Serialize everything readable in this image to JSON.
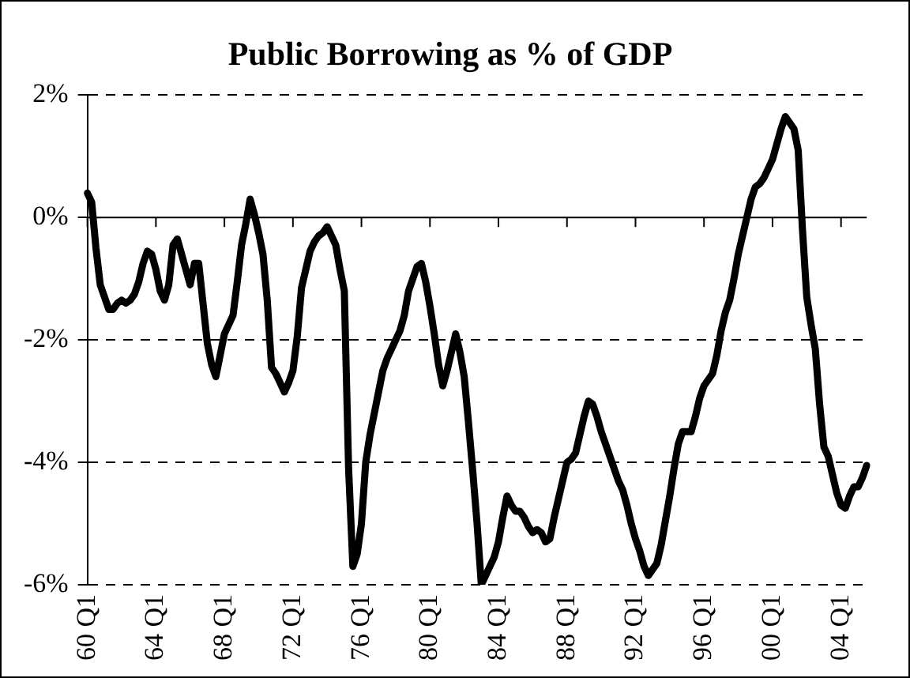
{
  "chart_data": {
    "type": "line",
    "title": "Public Borrowing as % of GDP",
    "categories": [
      "60 Q1",
      null,
      null,
      null,
      null,
      null,
      null,
      null,
      null,
      null,
      null,
      null,
      null,
      null,
      null,
      null,
      "64 Q1",
      null,
      null,
      null,
      null,
      null,
      null,
      null,
      null,
      null,
      null,
      null,
      null,
      null,
      null,
      null,
      "68 Q1",
      null,
      null,
      null,
      null,
      null,
      null,
      null,
      null,
      null,
      null,
      null,
      null,
      null,
      null,
      null,
      "72 Q1",
      null,
      null,
      null,
      null,
      null,
      null,
      null,
      null,
      null,
      null,
      null,
      null,
      null,
      null,
      null,
      "76 Q1",
      null,
      null,
      null,
      null,
      null,
      null,
      null,
      null,
      null,
      null,
      null,
      null,
      null,
      null,
      null,
      "80 Q1",
      null,
      null,
      null,
      null,
      null,
      null,
      null,
      null,
      null,
      null,
      null,
      null,
      null,
      null,
      null,
      "84 Q1",
      null,
      null,
      null,
      null,
      null,
      null,
      null,
      null,
      null,
      null,
      null,
      null,
      null,
      null,
      null,
      "88 Q1",
      null,
      null,
      null,
      null,
      null,
      null,
      null,
      null,
      null,
      null,
      null,
      null,
      null,
      null,
      null,
      "92 Q1",
      null,
      null,
      null,
      null,
      null,
      null,
      null,
      null,
      null,
      null,
      null,
      null,
      null,
      null,
      null,
      "96 Q1",
      null,
      null,
      null,
      null,
      null,
      null,
      null,
      null,
      null,
      null,
      null,
      null,
      null,
      null,
      null,
      "00 Q1",
      null,
      null,
      null,
      null,
      null,
      null,
      null,
      null,
      null,
      null,
      null,
      null,
      null,
      null,
      null,
      "04 Q1",
      null,
      null,
      null,
      null,
      null,
      null
    ],
    "series": [
      {
        "color": "#000000",
        "values": [
          0.4,
          0.25,
          -0.5,
          -1.1,
          -1.3,
          -1.5,
          -1.5,
          -1.4,
          -1.35,
          -1.4,
          -1.35,
          -1.25,
          -1.05,
          -0.75,
          -0.55,
          -0.6,
          -0.85,
          -1.2,
          -1.35,
          -1.1,
          -0.45,
          -0.35,
          -0.6,
          -0.85,
          -1.1,
          -0.75,
          -0.75,
          -1.4,
          -2.05,
          -2.4,
          -2.6,
          -2.25,
          -1.9,
          -1.75,
          -1.6,
          -1.05,
          -0.45,
          -0.1,
          0.3,
          0.05,
          -0.25,
          -0.6,
          -1.35,
          -2.45,
          -2.55,
          -2.7,
          -2.85,
          -2.7,
          -2.5,
          -1.95,
          -1.15,
          -0.85,
          -0.55,
          -0.4,
          -0.3,
          -0.25,
          -0.15,
          -0.3,
          -0.45,
          -0.85,
          -1.2,
          -4.1,
          -5.7,
          -5.5,
          -5.0,
          -4.0,
          -3.55,
          -3.2,
          -2.85,
          -2.5,
          -2.3,
          -2.15,
          -2.0,
          -1.85,
          -1.6,
          -1.2,
          -1.0,
          -0.8,
          -0.75,
          -1.05,
          -1.45,
          -1.9,
          -2.4,
          -2.75,
          -2.5,
          -2.2,
          -1.9,
          -2.2,
          -2.6,
          -3.35,
          -4.15,
          -5.0,
          -6.0,
          -5.85,
          -5.7,
          -5.55,
          -5.3,
          -4.9,
          -4.55,
          -4.7,
          -4.8,
          -4.8,
          -4.9,
          -5.05,
          -5.15,
          -5.1,
          -5.15,
          -5.3,
          -5.25,
          -4.9,
          -4.6,
          -4.3,
          -4.0,
          -3.95,
          -3.85,
          -3.55,
          -3.25,
          -3.0,
          -3.05,
          -3.25,
          -3.5,
          -3.7,
          -3.9,
          -4.1,
          -4.3,
          -4.45,
          -4.7,
          -5.0,
          -5.25,
          -5.45,
          -5.7,
          -5.85,
          -5.75,
          -5.65,
          -5.35,
          -4.95,
          -4.55,
          -4.1,
          -3.7,
          -3.5,
          -3.5,
          -3.5,
          -3.25,
          -2.95,
          -2.75,
          -2.65,
          -2.55,
          -2.25,
          -1.85,
          -1.55,
          -1.35,
          -1.0,
          -0.6,
          -0.3,
          0.0,
          0.3,
          0.5,
          0.55,
          0.65,
          0.8,
          0.95,
          1.2,
          1.45,
          1.65,
          1.55,
          1.45,
          1.1,
          -0.2,
          -1.3,
          -1.75,
          -2.15,
          -3.05,
          -3.75,
          -3.9,
          -4.2,
          -4.5,
          -4.7,
          -4.75,
          -4.55,
          -4.4,
          -4.4,
          -4.25,
          -4.05
        ]
      }
    ],
    "ylim": [
      -6,
      2
    ],
    "yticks": [
      {
        "value": 2,
        "label": "2%"
      },
      {
        "value": 0,
        "label": "0%"
      },
      {
        "value": -2,
        "label": "-2%"
      },
      {
        "value": -4,
        "label": "-4%"
      },
      {
        "value": -6,
        "label": "-6%"
      }
    ],
    "grid": "y",
    "legend": false,
    "marker": "none",
    "line_style": "solid"
  }
}
